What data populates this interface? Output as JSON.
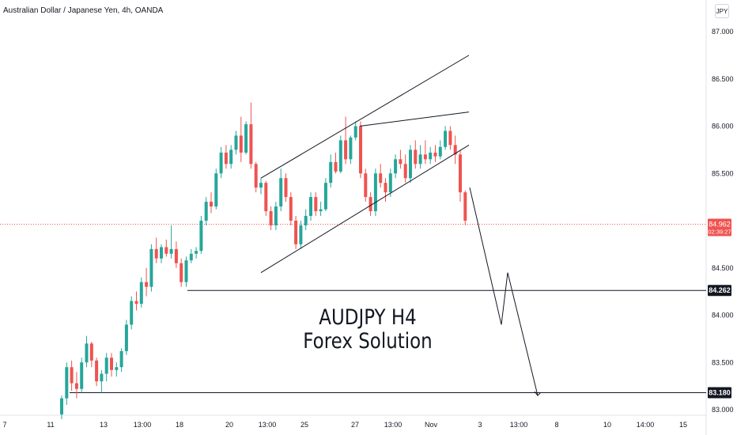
{
  "header": {
    "title": "Australian Dollar / Japanese Yen, 4h, OANDA",
    "currency": "JPY"
  },
  "caption": {
    "line1": "AUDJPY H4",
    "line2": "Forex Solution"
  },
  "colors": {
    "up": "#26a69a",
    "down": "#ef5350",
    "line": "#131722",
    "price_line": "#ef5350"
  },
  "chart_data": {
    "type": "candlestick",
    "symbol": "AUDJPY",
    "y_ticks": [
      "87.000",
      "86.500",
      "86.000",
      "85.500",
      "84.500",
      "84.000",
      "83.500",
      "83.000"
    ],
    "ylim": [
      82.9,
      87.15
    ],
    "x_ticks": [
      "7",
      "11",
      "13",
      "13:00",
      "18",
      "20",
      "13:00",
      "25",
      "27",
      "13:00",
      "Nov",
      "3",
      "13:00",
      "8",
      "10",
      "14:00",
      "15"
    ],
    "current_price": {
      "value": "84.962",
      "countdown": "02:39:27",
      "y": 84.962
    },
    "levels": [
      {
        "label": "84.262",
        "y": 84.262
      },
      {
        "label": "83.180",
        "y": 83.18
      }
    ],
    "candles": [
      [
        82.95,
        83.15,
        82.9,
        83.12
      ],
      [
        83.12,
        83.5,
        83.05,
        83.45
      ],
      [
        83.45,
        83.52,
        83.2,
        83.28
      ],
      [
        83.28,
        83.4,
        83.12,
        83.22
      ],
      [
        83.22,
        83.55,
        83.18,
        83.5
      ],
      [
        83.5,
        83.78,
        83.45,
        83.7
      ],
      [
        83.7,
        83.72,
        83.45,
        83.52
      ],
      [
        83.52,
        83.55,
        83.25,
        83.3
      ],
      [
        83.3,
        83.42,
        83.18,
        83.38
      ],
      [
        83.38,
        83.6,
        83.3,
        83.55
      ],
      [
        83.55,
        83.6,
        83.35,
        83.42
      ],
      [
        83.42,
        83.5,
        83.35,
        83.45
      ],
      [
        83.45,
        83.65,
        83.4,
        83.62
      ],
      [
        83.62,
        83.95,
        83.58,
        83.9
      ],
      [
        83.9,
        84.2,
        83.85,
        84.15
      ],
      [
        84.15,
        84.25,
        84.05,
        84.12
      ],
      [
        84.12,
        84.4,
        84.08,
        84.35
      ],
      [
        84.35,
        84.5,
        84.2,
        84.3
      ],
      [
        84.3,
        84.75,
        84.25,
        84.7
      ],
      [
        84.7,
        84.82,
        84.55,
        84.6
      ],
      [
        84.6,
        84.75,
        84.55,
        84.72
      ],
      [
        84.72,
        84.8,
        84.62,
        84.65
      ],
      [
        84.65,
        84.95,
        84.6,
        84.7
      ],
      [
        84.7,
        84.78,
        84.5,
        84.55
      ],
      [
        84.55,
        84.6,
        84.3,
        84.35
      ],
      [
        84.35,
        84.62,
        84.3,
        84.58
      ],
      [
        84.58,
        84.7,
        84.55,
        84.65
      ],
      [
        84.65,
        84.72,
        84.6,
        84.68
      ],
      [
        84.68,
        85.05,
        84.65,
        85.0
      ],
      [
        85.0,
        85.25,
        84.95,
        85.2
      ],
      [
        85.2,
        85.3,
        85.08,
        85.15
      ],
      [
        85.15,
        85.55,
        85.12,
        85.5
      ],
      [
        85.5,
        85.78,
        85.45,
        85.72
      ],
      [
        85.72,
        85.8,
        85.55,
        85.6
      ],
      [
        85.6,
        85.8,
        85.55,
        85.75
      ],
      [
        85.75,
        85.95,
        85.7,
        85.9
      ],
      [
        85.9,
        86.1,
        85.62,
        85.72
      ],
      [
        85.72,
        86.05,
        85.7,
        86.02
      ],
      [
        86.02,
        86.25,
        85.55,
        85.6
      ],
      [
        85.6,
        85.62,
        85.3,
        85.35
      ],
      [
        85.35,
        85.45,
        85.28,
        85.4
      ],
      [
        85.4,
        85.42,
        85.05,
        85.1
      ],
      [
        85.1,
        85.15,
        84.9,
        84.95
      ],
      [
        84.95,
        85.2,
        84.9,
        85.15
      ],
      [
        85.15,
        85.55,
        85.1,
        85.45
      ],
      [
        85.45,
        85.5,
        85.2,
        85.25
      ],
      [
        85.25,
        85.3,
        84.95,
        85.0
      ],
      [
        85.0,
        85.05,
        84.7,
        84.75
      ],
      [
        84.75,
        85.0,
        84.7,
        84.95
      ],
      [
        84.95,
        85.12,
        84.9,
        85.05
      ],
      [
        85.05,
        85.3,
        85.0,
        85.25
      ],
      [
        85.25,
        85.3,
        85.05,
        85.1
      ],
      [
        85.1,
        85.2,
        85.05,
        85.12
      ],
      [
        85.12,
        85.45,
        85.1,
        85.4
      ],
      [
        85.4,
        85.7,
        85.35,
        85.62
      ],
      [
        85.62,
        85.72,
        85.5,
        85.52
      ],
      [
        85.52,
        85.9,
        85.5,
        85.85
      ],
      [
        85.85,
        86.1,
        85.6,
        85.65
      ],
      [
        85.65,
        85.9,
        85.6,
        85.88
      ],
      [
        85.88,
        86.05,
        85.85,
        86.0
      ],
      [
        86.0,
        86.05,
        85.45,
        85.5
      ],
      [
        85.5,
        85.55,
        85.2,
        85.25
      ],
      [
        85.25,
        85.3,
        85.05,
        85.1
      ],
      [
        85.1,
        85.55,
        85.05,
        85.5
      ],
      [
        85.5,
        85.6,
        85.35,
        85.4
      ],
      [
        85.4,
        85.45,
        85.2,
        85.3
      ],
      [
        85.3,
        85.55,
        85.25,
        85.5
      ],
      [
        85.5,
        85.7,
        85.45,
        85.65
      ],
      [
        85.65,
        85.75,
        85.55,
        85.6
      ],
      [
        85.6,
        85.7,
        85.4,
        85.45
      ],
      [
        85.45,
        85.8,
        85.4,
        85.75
      ],
      [
        85.75,
        85.85,
        85.55,
        85.6
      ],
      [
        85.6,
        85.8,
        85.55,
        85.7
      ],
      [
        85.7,
        85.85,
        85.6,
        85.65
      ],
      [
        85.65,
        85.78,
        85.6,
        85.72
      ],
      [
        85.72,
        85.8,
        85.62,
        85.68
      ],
      [
        85.68,
        85.85,
        85.65,
        85.78
      ],
      [
        85.78,
        86.0,
        85.75,
        85.95
      ],
      [
        85.95,
        86.0,
        85.75,
        85.8
      ],
      [
        85.8,
        85.9,
        85.6,
        85.7
      ],
      [
        85.7,
        85.75,
        85.2,
        85.3
      ],
      [
        85.3,
        85.32,
        84.95,
        85.0
      ]
    ],
    "trendlines": [
      {
        "points": [
          [
            330,
            85.45
          ],
          [
            593,
            86.75
          ]
        ]
      },
      {
        "points": [
          [
            455,
            86.0
          ],
          [
            593,
            86.15
          ]
        ]
      },
      {
        "points": [
          [
            330,
            84.45
          ],
          [
            593,
            85.8
          ]
        ]
      },
      {
        "points": [
          [
            594,
            85.35
          ],
          [
            634,
            83.9
          ],
          [
            642,
            84.45
          ],
          [
            680,
            83.15
          ]
        ]
      }
    ]
  }
}
